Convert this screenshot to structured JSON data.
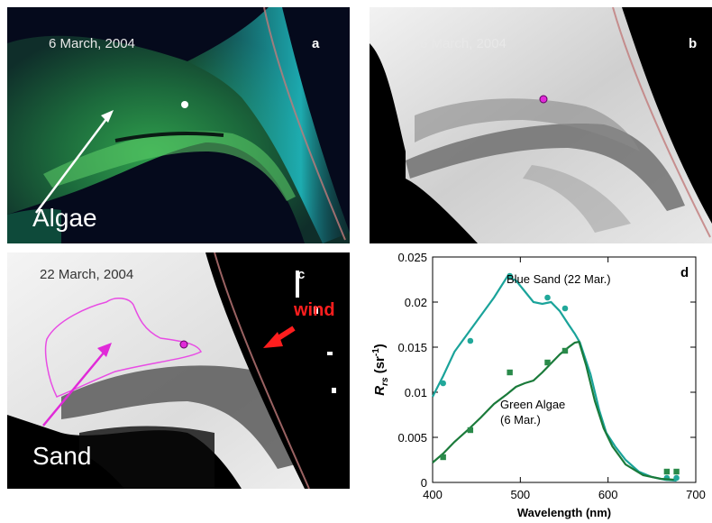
{
  "panel_a": {
    "date": "6 March, 2004",
    "letter": "a",
    "annotation": "Algae"
  },
  "panel_b": {
    "date": "6 March, 2004",
    "letter": "b"
  },
  "panel_c": {
    "date": "22 March, 2004",
    "letter": "c",
    "annotation": "Sand",
    "wind_label": "wind"
  },
  "colors": {
    "sand_curve": "#1aa39a",
    "algae_curve": "#1a7a3a",
    "sand_points": "#21a89a",
    "algae_points": "#2a8a4a",
    "marker_magenta": "#e02ad8",
    "wind_arrow": "#ff1e1e"
  },
  "chart_data": {
    "type": "line",
    "letter": "d",
    "xlabel": "Wavelength (nm)",
    "ylabel_main": "R",
    "ylabel_sub": "rs",
    "ylabel_unit": " (sr",
    "ylabel_exp": "-1",
    "ylabel_close": ")",
    "xlim": [
      400,
      700
    ],
    "ylim": [
      0,
      0.025
    ],
    "xticks": [
      400,
      500,
      600,
      700
    ],
    "xtick_labels": [
      "400",
      "500",
      "600",
      "700"
    ],
    "yticks": [
      0,
      0.005,
      0.01,
      0.015,
      0.02,
      0.025
    ],
    "ytick_labels": [
      "0",
      "0.005",
      "0.01",
      "0.015",
      "0.02",
      "0.025"
    ],
    "series": [
      {
        "name": "Blue Sand (22 Mar.)",
        "curve": [
          [
            400,
            0.0095
          ],
          [
            412,
            0.0118
          ],
          [
            425,
            0.0145
          ],
          [
            440,
            0.0165
          ],
          [
            455,
            0.0185
          ],
          [
            470,
            0.0205
          ],
          [
            485,
            0.0228
          ],
          [
            495,
            0.0224
          ],
          [
            505,
            0.0212
          ],
          [
            515,
            0.02
          ],
          [
            525,
            0.0198
          ],
          [
            535,
            0.02
          ],
          [
            545,
            0.019
          ],
          [
            555,
            0.0175
          ],
          [
            562,
            0.0165
          ],
          [
            568,
            0.0155
          ],
          [
            580,
            0.012
          ],
          [
            590,
            0.008
          ],
          [
            598,
            0.0055
          ],
          [
            608,
            0.004
          ],
          [
            620,
            0.0025
          ],
          [
            635,
            0.0012
          ],
          [
            650,
            0.0006
          ],
          [
            665,
            0.0003
          ],
          [
            678,
            0.0002
          ]
        ],
        "points": [
          [
            412,
            0.011
          ],
          [
            443,
            0.0157
          ],
          [
            488,
            0.0229
          ],
          [
            531,
            0.0205
          ],
          [
            551,
            0.0193
          ],
          [
            667,
            0.0005
          ],
          [
            678,
            0.0005
          ]
        ]
      },
      {
        "name": "Green Algae (6 Mar.)",
        "label_line2": "(6 Mar.)",
        "label_line1": "Green Algae",
        "curve": [
          [
            400,
            0.0022
          ],
          [
            412,
            0.0032
          ],
          [
            425,
            0.0045
          ],
          [
            440,
            0.0058
          ],
          [
            455,
            0.0072
          ],
          [
            470,
            0.0087
          ],
          [
            485,
            0.0098
          ],
          [
            495,
            0.0106
          ],
          [
            505,
            0.011
          ],
          [
            515,
            0.0113
          ],
          [
            525,
            0.0122
          ],
          [
            535,
            0.0132
          ],
          [
            545,
            0.0142
          ],
          [
            555,
            0.015
          ],
          [
            562,
            0.0155
          ],
          [
            567,
            0.0156
          ],
          [
            575,
            0.013
          ],
          [
            585,
            0.009
          ],
          [
            595,
            0.006
          ],
          [
            605,
            0.004
          ],
          [
            620,
            0.002
          ],
          [
            640,
            0.0008
          ],
          [
            660,
            0.0004
          ],
          [
            675,
            0.0003
          ]
        ],
        "points": [
          [
            412,
            0.0028
          ],
          [
            443,
            0.0058
          ],
          [
            488,
            0.0122
          ],
          [
            531,
            0.0133
          ],
          [
            551,
            0.0146
          ],
          [
            667,
            0.0012
          ],
          [
            678,
            0.0012
          ]
        ]
      }
    ]
  }
}
